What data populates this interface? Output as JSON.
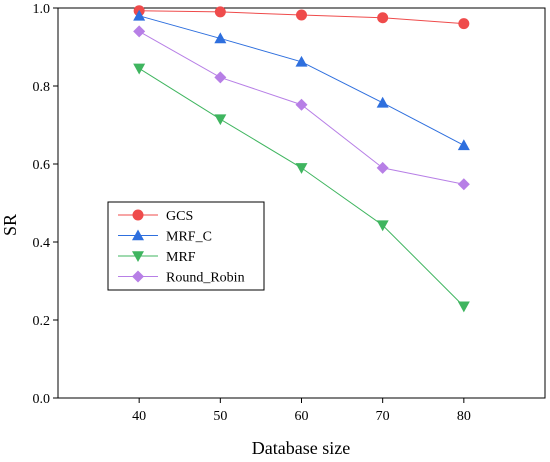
{
  "chart_data": {
    "type": "line",
    "title": "",
    "xlabel": "Database size",
    "ylabel": "SR",
    "x": [
      40,
      50,
      60,
      70,
      80
    ],
    "xlim": [
      30,
      90
    ],
    "ylim": [
      0.0,
      1.0
    ],
    "yticks": [
      0.0,
      0.2,
      0.4,
      0.6,
      0.8,
      1.0
    ],
    "ytick_labels": [
      "0.0",
      "0.2",
      "0.4",
      "0.6",
      "0.8",
      "1.0"
    ],
    "xtick_labels": [
      "40",
      "50",
      "60",
      "70",
      "80"
    ],
    "grid": false,
    "legend_position": "middle-left",
    "series": [
      {
        "name": "GCS",
        "color": "#ef4b4b",
        "marker": "circle",
        "values": [
          0.993,
          0.99,
          0.982,
          0.975,
          0.96
        ]
      },
      {
        "name": "MRF_C",
        "color": "#2e6fde",
        "marker": "triangle-up",
        "values": [
          0.98,
          0.922,
          0.862,
          0.757,
          0.648
        ]
      },
      {
        "name": "MRF",
        "color": "#3fb55f",
        "marker": "triangle-down",
        "values": [
          0.845,
          0.715,
          0.59,
          0.443,
          0.235
        ]
      },
      {
        "name": "Round_Robin",
        "color": "#b77fe6",
        "marker": "diamond",
        "values": [
          0.94,
          0.822,
          0.752,
          0.59,
          0.548
        ]
      }
    ]
  }
}
